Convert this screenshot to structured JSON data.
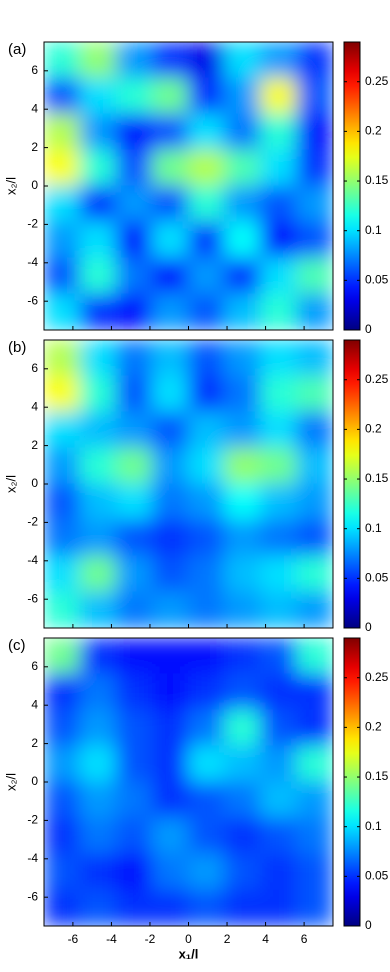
{
  "chart_data": [
    {
      "type": "heatmap",
      "panel_label": "(a)",
      "y_label": "x₂/l",
      "colormap": "jet",
      "xlim": [
        -7.5,
        7.5
      ],
      "ylim": [
        -7.5,
        7.5
      ],
      "xticks": [
        -6,
        -4,
        -2,
        0,
        2,
        4,
        6
      ],
      "yticks": [
        -6,
        -4,
        -2,
        0,
        2,
        4,
        6
      ],
      "zlim": [
        0,
        0.29
      ],
      "zticks": [
        0,
        0.05,
        0.1,
        0.15,
        0.2,
        0.25
      ],
      "z": [
        [
          0.12,
          0.15,
          0.08,
          0.05,
          0.03,
          0.1,
          0.08,
          0.05
        ],
        [
          0.06,
          0.1,
          0.12,
          0.14,
          0.05,
          0.08,
          0.18,
          0.06
        ],
        [
          0.16,
          0.08,
          0.04,
          0.06,
          0.1,
          0.07,
          0.12,
          0.04
        ],
        [
          0.18,
          0.12,
          0.06,
          0.14,
          0.16,
          0.13,
          0.1,
          0.05
        ],
        [
          0.1,
          0.05,
          0.08,
          0.06,
          0.12,
          0.08,
          0.06,
          0.08
        ],
        [
          0.08,
          0.1,
          0.04,
          0.1,
          0.05,
          0.11,
          0.04,
          0.06
        ],
        [
          0.06,
          0.12,
          0.07,
          0.04,
          0.08,
          0.05,
          0.1,
          0.13
        ],
        [
          0.1,
          0.05,
          0.04,
          0.08,
          0.06,
          0.09,
          0.12,
          0.08
        ]
      ]
    },
    {
      "type": "heatmap",
      "panel_label": "(b)",
      "y_label": "x₂/l",
      "colormap": "jet",
      "xlim": [
        -7.5,
        7.5
      ],
      "ylim": [
        -7.5,
        7.5
      ],
      "xticks": [
        -6,
        -4,
        -2,
        0,
        2,
        4,
        6
      ],
      "yticks": [
        -6,
        -4,
        -2,
        0,
        2,
        4,
        6
      ],
      "zlim": [
        0,
        0.29
      ],
      "zticks": [
        0,
        0.05,
        0.1,
        0.15,
        0.2,
        0.25
      ],
      "z": [
        [
          0.16,
          0.1,
          0.07,
          0.09,
          0.06,
          0.08,
          0.1,
          0.09
        ],
        [
          0.18,
          0.12,
          0.06,
          0.1,
          0.05,
          0.07,
          0.12,
          0.13
        ],
        [
          0.1,
          0.09,
          0.08,
          0.06,
          0.09,
          0.08,
          0.1,
          0.07
        ],
        [
          0.08,
          0.12,
          0.14,
          0.08,
          0.1,
          0.15,
          0.14,
          0.09
        ],
        [
          0.06,
          0.09,
          0.1,
          0.07,
          0.08,
          0.11,
          0.09,
          0.08
        ],
        [
          0.07,
          0.08,
          0.06,
          0.05,
          0.06,
          0.08,
          0.07,
          0.06
        ],
        [
          0.1,
          0.14,
          0.08,
          0.06,
          0.07,
          0.09,
          0.1,
          0.12
        ],
        [
          0.12,
          0.09,
          0.07,
          0.08,
          0.07,
          0.08,
          0.09,
          0.08
        ]
      ]
    },
    {
      "type": "heatmap",
      "panel_label": "(c)",
      "y_label": "x₂/l",
      "x_label": "x₁/l",
      "colormap": "jet",
      "xlim": [
        -7.5,
        7.5
      ],
      "ylim": [
        -7.5,
        7.5
      ],
      "xticks": [
        -6,
        -4,
        -2,
        0,
        2,
        4,
        6
      ],
      "yticks": [
        -6,
        -4,
        -2,
        0,
        2,
        4,
        6
      ],
      "zlim": [
        0,
        0.29
      ],
      "zticks": [
        0,
        0.05,
        0.1,
        0.15,
        0.2,
        0.25
      ],
      "z": [
        [
          0.14,
          0.05,
          0.04,
          0.04,
          0.04,
          0.05,
          0.06,
          0.12
        ],
        [
          0.05,
          0.07,
          0.05,
          0.04,
          0.05,
          0.06,
          0.05,
          0.05
        ],
        [
          0.06,
          0.08,
          0.06,
          0.05,
          0.07,
          0.12,
          0.06,
          0.05
        ],
        [
          0.08,
          0.1,
          0.06,
          0.05,
          0.1,
          0.09,
          0.08,
          0.12
        ],
        [
          0.06,
          0.08,
          0.07,
          0.05,
          0.06,
          0.07,
          0.09,
          0.08
        ],
        [
          0.05,
          0.07,
          0.06,
          0.08,
          0.06,
          0.05,
          0.06,
          0.07
        ],
        [
          0.06,
          0.05,
          0.04,
          0.07,
          0.08,
          0.06,
          0.05,
          0.06
        ],
        [
          0.05,
          0.06,
          0.05,
          0.05,
          0.06,
          0.05,
          0.05,
          0.06
        ]
      ]
    }
  ]
}
